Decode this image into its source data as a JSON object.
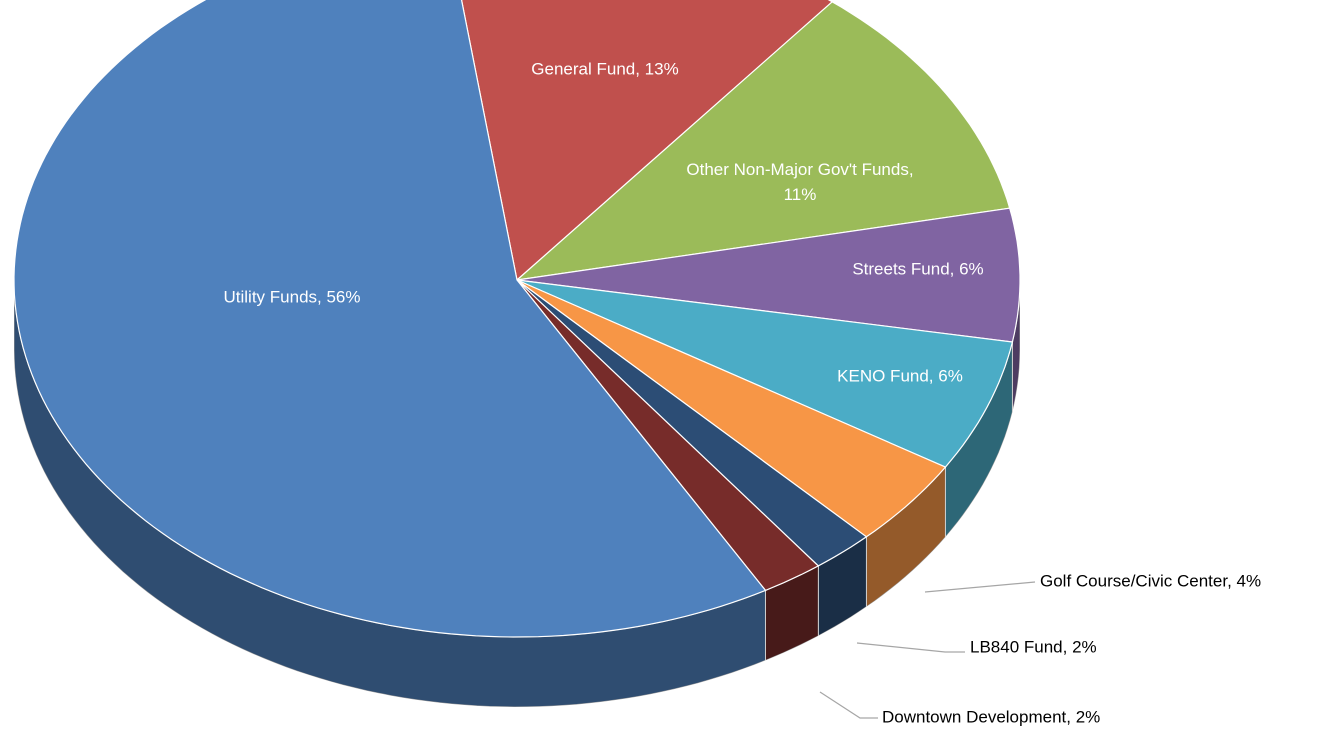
{
  "chart_data": {
    "type": "pie3d",
    "values": [
      13,
      11,
      6,
      6,
      4,
      2,
      2,
      56
    ],
    "value_labels": [
      "General Fund, 13%",
      "Other Non-Major Gov't Funds, 11%",
      "Streets Fund, 6%",
      "KENO Fund, 6%",
      "Golf Course/Civic Center, 4%",
      "LB840 Fund, 2%",
      "Downtown Development, 2%",
      "Utility Funds, 56%"
    ],
    "colors": [
      "#c0504d",
      "#9bbb59",
      "#8064a2",
      "#4bacc6",
      "#f79646",
      "#2c4d75",
      "#772c2a",
      "#4f81bd"
    ]
  }
}
